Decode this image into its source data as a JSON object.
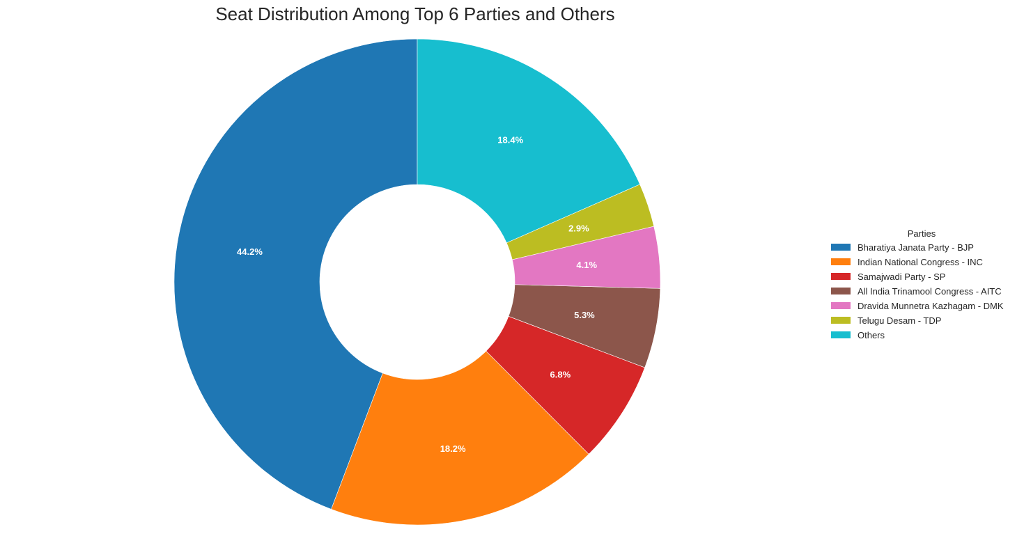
{
  "chart_data": {
    "type": "pie",
    "title": "Seat Distribution Among Top 6 Parties and Others",
    "donut": true,
    "start_angle": "top, counter-clockwise",
    "legend": {
      "title": "Parties",
      "placement": "right"
    },
    "slices": [
      {
        "label": "Bharatiya Janata Party - BJP",
        "value": 44.2,
        "color": "#1f77b4"
      },
      {
        "label": "Indian National Congress - INC",
        "value": 18.2,
        "color": "#ff7f0e"
      },
      {
        "label": "Samajwadi Party - SP",
        "value": 6.8,
        "color": "#d62728"
      },
      {
        "label": "All India Trinamool Congress - AITC",
        "value": 5.3,
        "color": "#8c564b"
      },
      {
        "label": "Dravida Munnetra Kazhagam - DMK",
        "value": 4.1,
        "color": "#e377c2"
      },
      {
        "label": "Telugu Desam - TDP",
        "value": 2.9,
        "color": "#bcbd22"
      },
      {
        "label": "Others",
        "value": 18.4,
        "color": "#17becf"
      }
    ]
  }
}
